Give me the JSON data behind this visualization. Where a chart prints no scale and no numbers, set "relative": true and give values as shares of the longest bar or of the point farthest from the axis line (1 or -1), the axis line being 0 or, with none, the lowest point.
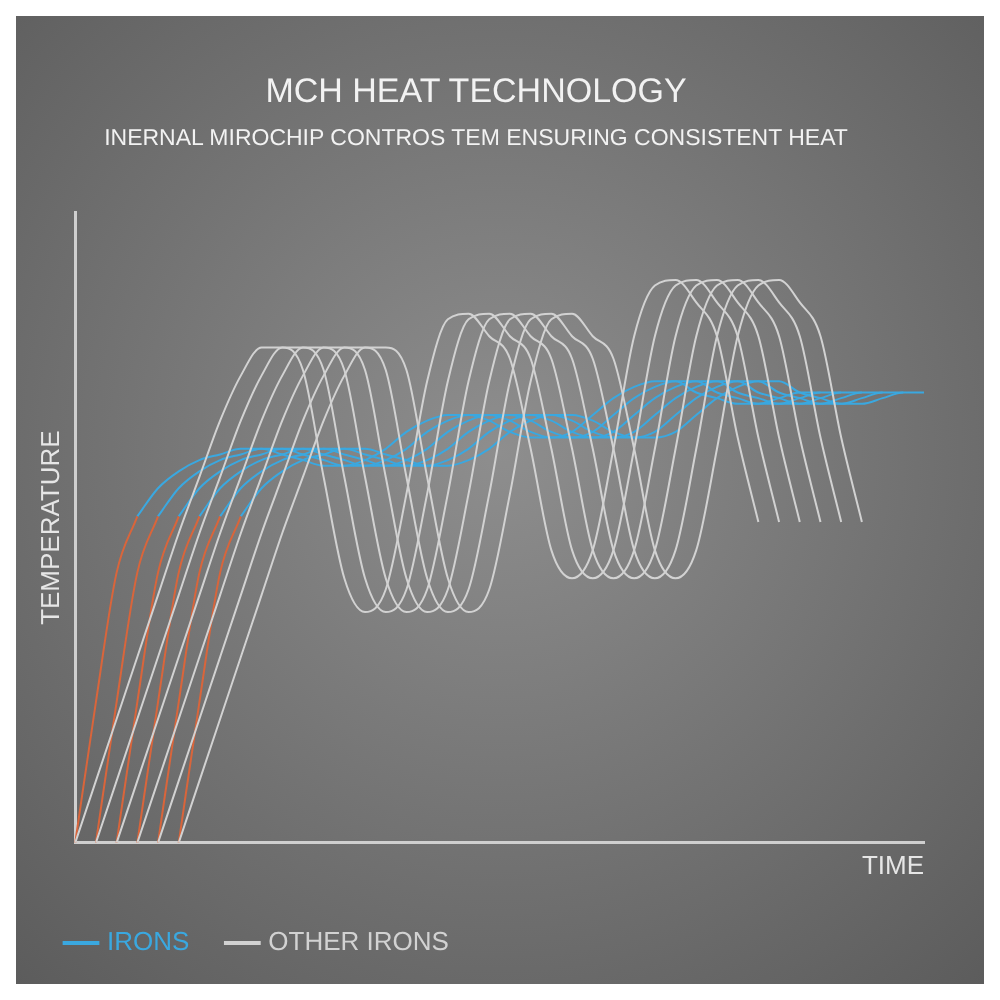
{
  "chart_data": {
    "type": "line",
    "title": "MCH HEAT TECHNOLOGY",
    "subtitle": "INERNAL MIROCHIP CONTROS TEM ENSURING CONSISTENT HEAT",
    "xlabel": "TIME",
    "ylabel": "TEMPERATURE",
    "relative": true,
    "tick_labels": false,
    "grid": false,
    "legend": "bottom",
    "marker": "none",
    "line_style": "solid",
    "categories": [
      null,
      null,
      null,
      null,
      null,
      null,
      null,
      null,
      null,
      null,
      null,
      null,
      null,
      null,
      null,
      null,
      null,
      null,
      null,
      null,
      null,
      null,
      null,
      null,
      null,
      null,
      null,
      null,
      null,
      null,
      null,
      null,
      null,
      null,
      null,
      null,
      null,
      null,
      null,
      null,
      null,
      null
    ],
    "series": [
      {
        "name": "OTHER IRONS",
        "color": "#d2d2d2",
        "values": [
          0,
          0.11,
          0.22,
          0.33,
          0.44,
          0.55,
          0.65,
          0.75,
          0.83,
          0.88,
          0.88,
          0.84,
          0.65,
          0.47,
          0.41,
          0.45,
          0.62,
          0.82,
          0.93,
          0.94,
          0.9,
          0.86,
          0.7,
          0.52,
          0.47,
          0.52,
          0.7,
          0.9,
          0.99,
          1,
          0.96,
          0.9,
          0.72,
          0.57,
          null,
          null,
          null,
          null,
          null,
          null,
          null,
          null
        ]
      },
      {
        "color": "#d2d2d2",
        "values": [
          null,
          0,
          0.11,
          0.22,
          0.33,
          0.44,
          0.55,
          0.65,
          0.75,
          0.83,
          0.88,
          0.88,
          0.84,
          0.65,
          0.47,
          0.41,
          0.45,
          0.62,
          0.82,
          0.93,
          0.94,
          0.9,
          0.86,
          0.7,
          0.52,
          0.47,
          0.52,
          0.7,
          0.9,
          0.99,
          1,
          0.96,
          0.9,
          0.72,
          0.57,
          null,
          null,
          null,
          null,
          null,
          null,
          null
        ]
      },
      {
        "color": "#d2d2d2",
        "values": [
          null,
          null,
          0,
          0.11,
          0.22,
          0.33,
          0.44,
          0.55,
          0.65,
          0.75,
          0.83,
          0.88,
          0.88,
          0.84,
          0.65,
          0.47,
          0.41,
          0.45,
          0.62,
          0.82,
          0.93,
          0.94,
          0.9,
          0.86,
          0.7,
          0.52,
          0.47,
          0.52,
          0.7,
          0.9,
          0.99,
          1,
          0.96,
          0.9,
          0.72,
          0.57,
          null,
          null,
          null,
          null,
          null,
          null
        ]
      },
      {
        "color": "#d2d2d2",
        "values": [
          null,
          null,
          null,
          0,
          0.11,
          0.22,
          0.33,
          0.44,
          0.55,
          0.65,
          0.75,
          0.83,
          0.88,
          0.88,
          0.84,
          0.65,
          0.47,
          0.41,
          0.45,
          0.62,
          0.82,
          0.93,
          0.94,
          0.9,
          0.86,
          0.7,
          0.52,
          0.47,
          0.52,
          0.7,
          0.9,
          0.99,
          1,
          0.96,
          0.9,
          0.72,
          0.57,
          null,
          null,
          null,
          null,
          null
        ]
      },
      {
        "color": "#d2d2d2",
        "values": [
          null,
          null,
          null,
          null,
          0,
          0.11,
          0.22,
          0.33,
          0.44,
          0.55,
          0.65,
          0.75,
          0.83,
          0.88,
          0.88,
          0.84,
          0.65,
          0.47,
          0.41,
          0.45,
          0.62,
          0.82,
          0.93,
          0.94,
          0.9,
          0.86,
          0.7,
          0.52,
          0.47,
          0.52,
          0.7,
          0.9,
          0.99,
          1,
          0.96,
          0.9,
          0.72,
          0.57,
          null,
          null,
          null,
          null
        ]
      },
      {
        "color": "#d2d2d2",
        "values": [
          null,
          null,
          null,
          null,
          null,
          0,
          0.11,
          0.22,
          0.33,
          0.44,
          0.55,
          0.65,
          0.75,
          0.83,
          0.88,
          0.88,
          0.84,
          0.65,
          0.47,
          0.41,
          0.45,
          0.62,
          0.82,
          0.93,
          0.94,
          0.9,
          0.86,
          0.7,
          0.52,
          0.47,
          0.52,
          0.7,
          0.9,
          0.99,
          1,
          0.96,
          0.9,
          0.72,
          0.57,
          null,
          null,
          null
        ]
      },
      {
        "color": "#d9653b",
        "values": [
          0,
          0.25,
          0.48,
          0.58,
          null,
          null,
          null,
          null,
          null,
          null,
          null,
          null,
          null,
          null,
          null,
          null,
          null,
          null,
          null,
          null,
          null,
          null,
          null,
          null,
          null,
          null,
          null,
          null,
          null,
          null,
          null,
          null,
          null,
          null,
          null,
          null,
          null,
          null,
          null,
          null,
          null,
          null
        ]
      },
      {
        "color": "#d9653b",
        "values": [
          null,
          0,
          0.25,
          0.48,
          0.58,
          null,
          null,
          null,
          null,
          null,
          null,
          null,
          null,
          null,
          null,
          null,
          null,
          null,
          null,
          null,
          null,
          null,
          null,
          null,
          null,
          null,
          null,
          null,
          null,
          null,
          null,
          null,
          null,
          null,
          null,
          null,
          null,
          null,
          null,
          null,
          null,
          null
        ]
      },
      {
        "color": "#d9653b",
        "values": [
          null,
          null,
          0,
          0.25,
          0.48,
          0.58,
          null,
          null,
          null,
          null,
          null,
          null,
          null,
          null,
          null,
          null,
          null,
          null,
          null,
          null,
          null,
          null,
          null,
          null,
          null,
          null,
          null,
          null,
          null,
          null,
          null,
          null,
          null,
          null,
          null,
          null,
          null,
          null,
          null,
          null,
          null,
          null
        ]
      },
      {
        "color": "#d9653b",
        "values": [
          null,
          null,
          null,
          0,
          0.25,
          0.48,
          0.58,
          null,
          null,
          null,
          null,
          null,
          null,
          null,
          null,
          null,
          null,
          null,
          null,
          null,
          null,
          null,
          null,
          null,
          null,
          null,
          null,
          null,
          null,
          null,
          null,
          null,
          null,
          null,
          null,
          null,
          null,
          null,
          null,
          null,
          null,
          null
        ]
      },
      {
        "color": "#d9653b",
        "values": [
          null,
          null,
          null,
          null,
          0,
          0.25,
          0.48,
          0.58,
          null,
          null,
          null,
          null,
          null,
          null,
          null,
          null,
          null,
          null,
          null,
          null,
          null,
          null,
          null,
          null,
          null,
          null,
          null,
          null,
          null,
          null,
          null,
          null,
          null,
          null,
          null,
          null,
          null,
          null,
          null,
          null,
          null,
          null
        ]
      },
      {
        "color": "#d9653b",
        "values": [
          null,
          null,
          null,
          null,
          null,
          0,
          0.25,
          0.48,
          0.58,
          null,
          null,
          null,
          null,
          null,
          null,
          null,
          null,
          null,
          null,
          null,
          null,
          null,
          null,
          null,
          null,
          null,
          null,
          null,
          null,
          null,
          null,
          null,
          null,
          null,
          null,
          null,
          null,
          null,
          null,
          null,
          null,
          null
        ]
      },
      {
        "name": "IRONS",
        "color": "#3aa8e0",
        "values": [
          null,
          null,
          null,
          0.58,
          0.63,
          0.66,
          0.68,
          0.69,
          0.7,
          0.7,
          0.69,
          0.68,
          0.67,
          0.67,
          0.68,
          0.7,
          0.73,
          0.75,
          0.76,
          0.76,
          0.75,
          0.73,
          0.72,
          0.72,
          0.73,
          0.76,
          0.79,
          0.81,
          0.82,
          0.82,
          0.8,
          0.79,
          0.78,
          0.78,
          0.79,
          0.8,
          0.8,
          null,
          null,
          null,
          null,
          null
        ]
      },
      {
        "color": "#3aa8e0",
        "values": [
          null,
          null,
          null,
          null,
          0.58,
          0.63,
          0.66,
          0.68,
          0.69,
          0.7,
          0.7,
          0.69,
          0.68,
          0.67,
          0.67,
          0.68,
          0.7,
          0.73,
          0.75,
          0.76,
          0.76,
          0.75,
          0.73,
          0.72,
          0.72,
          0.73,
          0.76,
          0.79,
          0.81,
          0.82,
          0.82,
          0.8,
          0.79,
          0.78,
          0.78,
          0.79,
          0.8,
          0.8,
          null,
          null,
          null,
          null
        ]
      },
      {
        "color": "#3aa8e0",
        "values": [
          null,
          null,
          null,
          null,
          null,
          0.58,
          0.63,
          0.66,
          0.68,
          0.69,
          0.7,
          0.7,
          0.69,
          0.68,
          0.67,
          0.67,
          0.68,
          0.7,
          0.73,
          0.75,
          0.76,
          0.76,
          0.75,
          0.73,
          0.72,
          0.72,
          0.73,
          0.76,
          0.79,
          0.81,
          0.82,
          0.82,
          0.8,
          0.79,
          0.78,
          0.78,
          0.79,
          0.8,
          0.8,
          null,
          null,
          null
        ]
      },
      {
        "color": "#3aa8e0",
        "values": [
          null,
          null,
          null,
          null,
          null,
          null,
          0.58,
          0.63,
          0.66,
          0.68,
          0.69,
          0.7,
          0.7,
          0.69,
          0.68,
          0.67,
          0.67,
          0.68,
          0.7,
          0.73,
          0.75,
          0.76,
          0.76,
          0.75,
          0.73,
          0.72,
          0.72,
          0.73,
          0.76,
          0.79,
          0.81,
          0.82,
          0.82,
          0.8,
          0.79,
          0.78,
          0.78,
          0.79,
          0.8,
          0.8,
          null,
          null
        ]
      },
      {
        "color": "#3aa8e0",
        "values": [
          null,
          null,
          null,
          null,
          null,
          null,
          null,
          0.58,
          0.63,
          0.66,
          0.68,
          0.69,
          0.7,
          0.7,
          0.69,
          0.68,
          0.67,
          0.67,
          0.68,
          0.7,
          0.73,
          0.75,
          0.76,
          0.76,
          0.75,
          0.73,
          0.72,
          0.72,
          0.73,
          0.76,
          0.79,
          0.81,
          0.82,
          0.82,
          0.8,
          0.79,
          0.78,
          0.78,
          0.79,
          0.8,
          0.8,
          null
        ]
      },
      {
        "color": "#3aa8e0",
        "values": [
          null,
          null,
          null,
          null,
          null,
          null,
          null,
          null,
          0.58,
          0.63,
          0.66,
          0.68,
          0.69,
          0.7,
          0.7,
          0.69,
          0.68,
          0.67,
          0.67,
          0.68,
          0.7,
          0.73,
          0.75,
          0.76,
          0.76,
          0.75,
          0.73,
          0.72,
          0.72,
          0.73,
          0.76,
          0.79,
          0.81,
          0.82,
          0.82,
          0.8,
          0.79,
          0.78,
          0.78,
          0.79,
          0.8,
          0.8
        ]
      }
    ]
  }
}
